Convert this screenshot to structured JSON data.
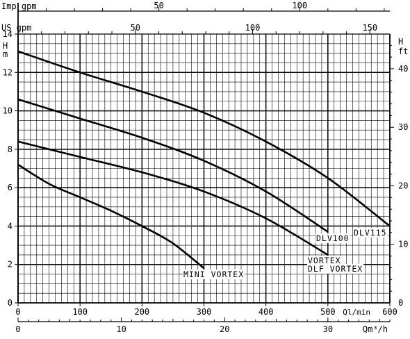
{
  "chart_data": {
    "type": "line",
    "y_left": {
      "label_line1": "H",
      "label_line2": "m",
      "range": [
        0,
        14
      ],
      "ticks": [
        0,
        2,
        4,
        6,
        8,
        10,
        12,
        14
      ]
    },
    "y_right": {
      "label_line1": "H",
      "label_line2": "ft",
      "range": [
        0,
        45.93
      ],
      "ticks": [
        0,
        10,
        20,
        30,
        40
      ]
    },
    "x_bottom_primary": {
      "unit_label": "Ql/min",
      "range": [
        0,
        600
      ],
      "ticks": [
        0,
        100,
        200,
        300,
        400,
        500,
        600
      ]
    },
    "x_bottom_secondary": {
      "unit_label": "Qm³/h",
      "range": [
        0,
        36
      ],
      "ticks": [
        0,
        10,
        20,
        30
      ]
    },
    "x_top_us": {
      "label": "US gpm",
      "range": [
        0,
        158.5
      ],
      "ticks": [
        50,
        100,
        150
      ]
    },
    "x_top_imp": {
      "label": "Imp gpm",
      "range": [
        0,
        132
      ],
      "ticks": [
        50,
        100
      ]
    },
    "series": [
      {
        "name": "DLV115",
        "x": [
          0,
          100,
          200,
          300,
          400,
          500,
          600
        ],
        "y": [
          13.1,
          12.0,
          11.0,
          9.9,
          8.4,
          6.5,
          4.0
        ]
      },
      {
        "name": "DLV100",
        "x": [
          0,
          100,
          200,
          300,
          400,
          500
        ],
        "y": [
          10.6,
          9.6,
          8.6,
          7.4,
          5.8,
          3.7
        ]
      },
      {
        "name": "VORTEX DLF VORTEX",
        "label_line1": "VORTEX",
        "label_line2": "DLF VORTEX",
        "x": [
          0,
          100,
          200,
          300,
          400,
          500
        ],
        "y": [
          8.4,
          7.6,
          6.8,
          5.8,
          4.4,
          2.5
        ]
      },
      {
        "name": "MINI VORTEX",
        "x": [
          0,
          50,
          100,
          150,
          200,
          250,
          300
        ],
        "y": [
          7.2,
          6.2,
          5.5,
          4.8,
          4.0,
          3.1,
          1.8
        ]
      }
    ]
  }
}
